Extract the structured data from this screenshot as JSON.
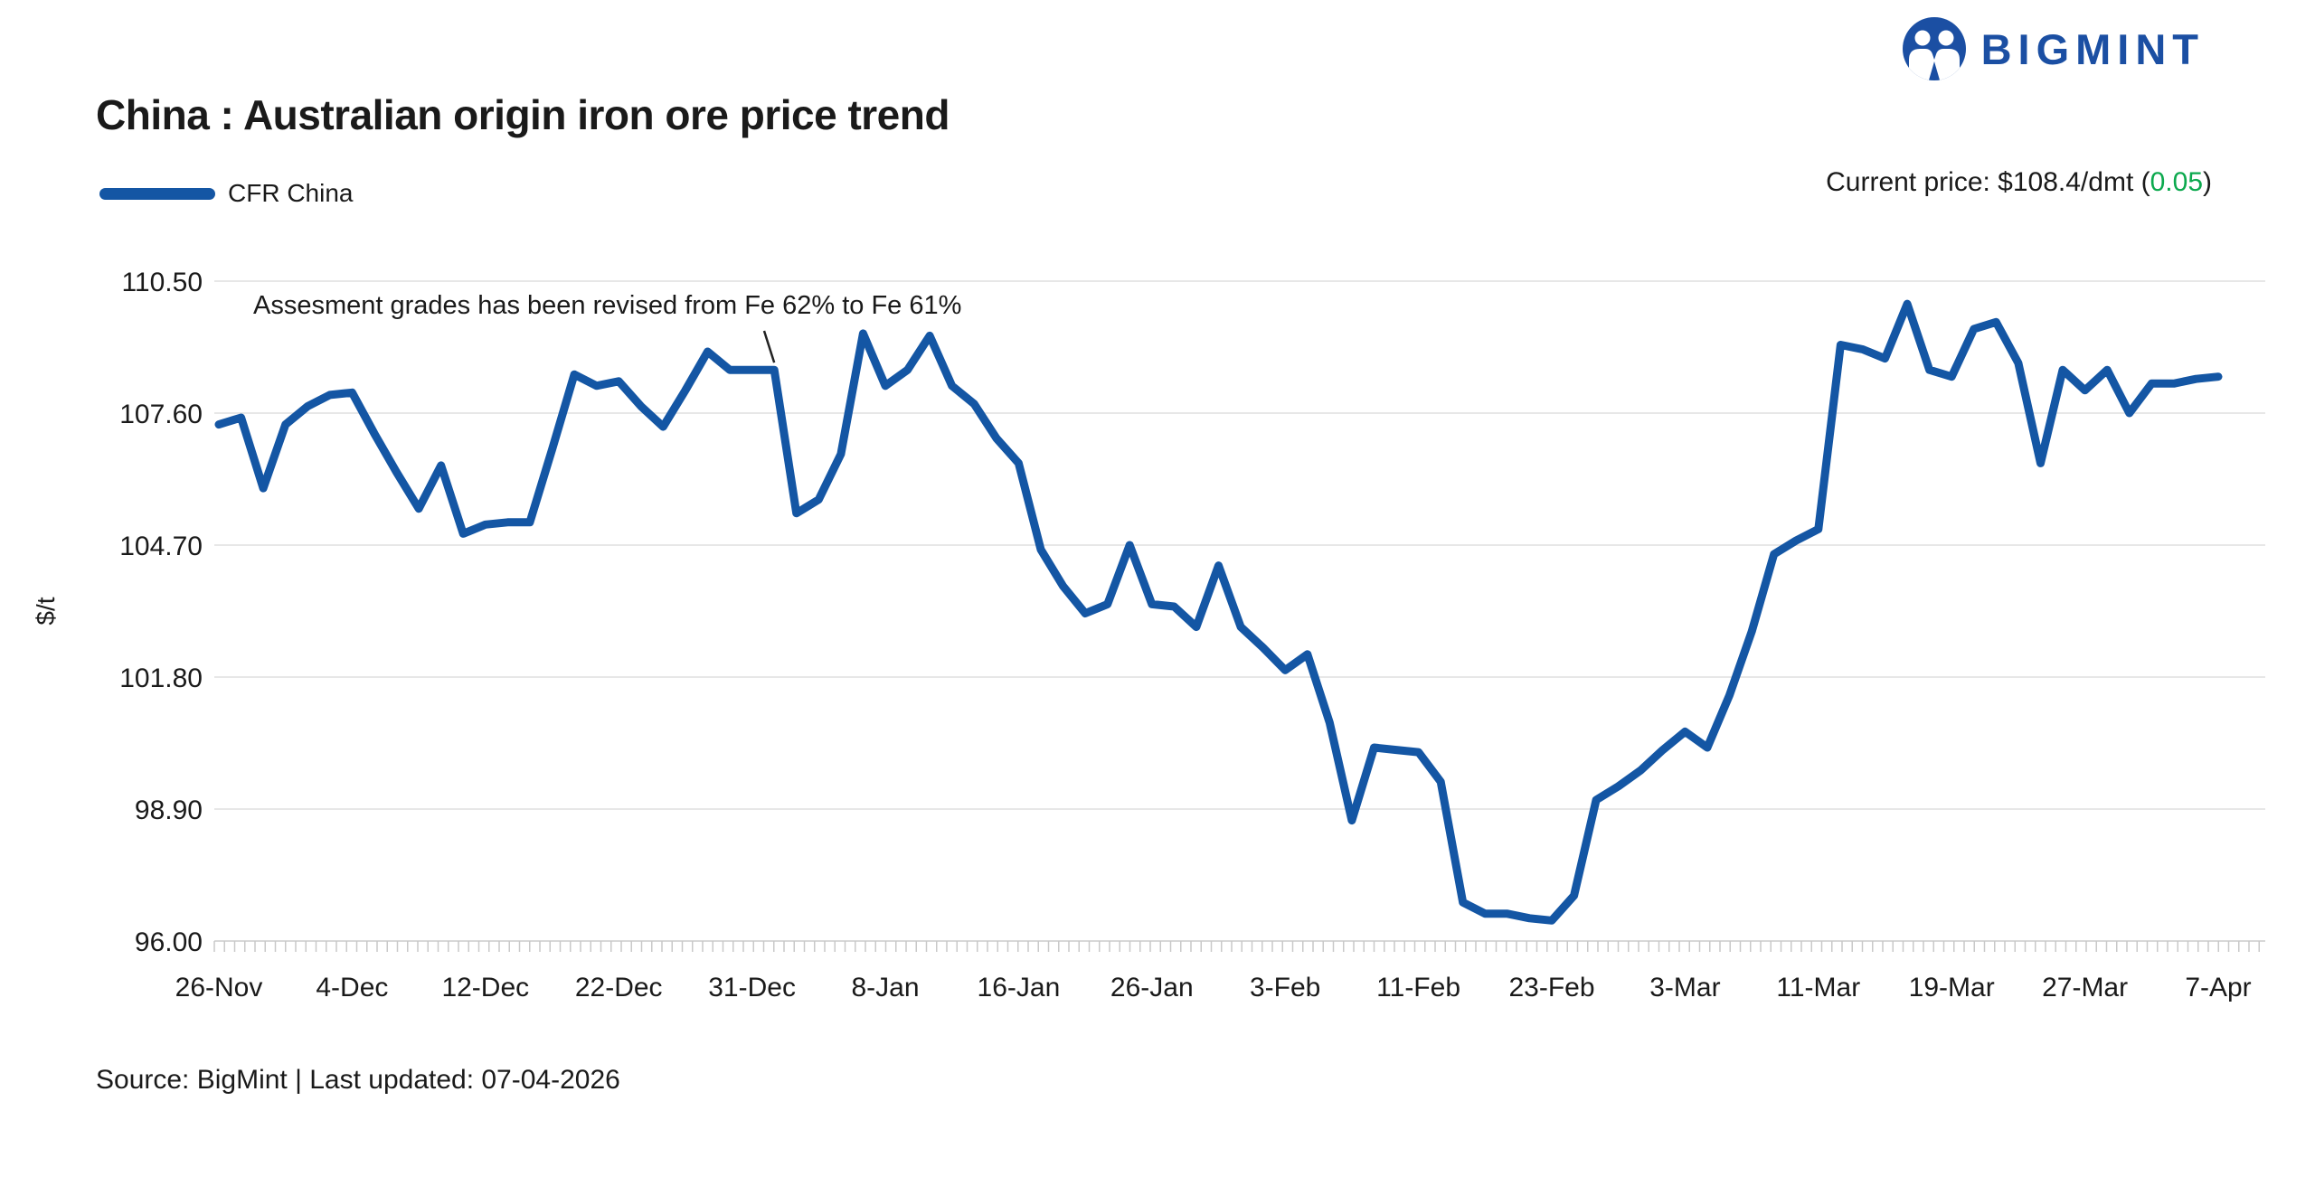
{
  "brand": {
    "name": "BIGMINT"
  },
  "header": {
    "title": "China : Australian origin iron ore price trend",
    "current_price": {
      "prefix": "Current price: $108.4/dmt (",
      "change": "0.05",
      "suffix": ")"
    }
  },
  "legend": {
    "series_label": "CFR China"
  },
  "annotation": {
    "text": "Assesment grades has been revised from Fe 62% to Fe 61%",
    "point_index": 25
  },
  "footer": {
    "source_text": "Source: BigMint | Last updated: 07-04-2026"
  },
  "colors": {
    "line": "#1456A4",
    "brand_blue": "#1B4FA3",
    "positive_green": "#0CA94E",
    "grid": "#E7E7E7",
    "axis": "#D8D8D8",
    "tick": "#C9C9C9",
    "connector": "#222222",
    "text": "#1A1A1A"
  },
  "chart_data": {
    "type": "line",
    "title": "China : Australian origin iron ore price trend",
    "series_name": "CFR China",
    "xlabel": "",
    "ylabel": "$/t",
    "ylim": [
      96.0,
      110.5
    ],
    "grid": "horizontal",
    "legend_position": "top-left",
    "y_ticks": [
      110.5,
      107.6,
      104.7,
      101.8,
      98.9,
      96.0
    ],
    "y_tick_labels": [
      "110.50",
      "107.60",
      "104.70",
      "101.80",
      "98.90",
      "96.00"
    ],
    "x_tick_labels": [
      "26-Nov",
      "4-Dec",
      "12-Dec",
      "22-Dec",
      "31-Dec",
      "8-Jan",
      "16-Jan",
      "26-Jan",
      "3-Feb",
      "11-Feb",
      "23-Feb",
      "3-Mar",
      "11-Mar",
      "19-Mar",
      "27-Mar",
      "7-Apr"
    ],
    "x_tick_every": 6,
    "current_value": 108.4,
    "values": [
      107.35,
      107.5,
      105.95,
      107.35,
      107.75,
      108.0,
      108.05,
      107.15,
      106.3,
      105.5,
      106.45,
      104.95,
      105.15,
      105.2,
      105.2,
      106.8,
      108.45,
      108.2,
      108.3,
      107.75,
      107.3,
      108.1,
      108.95,
      108.55,
      108.55,
      108.55,
      105.4,
      105.7,
      106.7,
      109.35,
      108.2,
      108.55,
      109.3,
      108.2,
      107.8,
      107.05,
      106.5,
      104.6,
      103.8,
      103.2,
      103.4,
      104.7,
      103.4,
      103.35,
      102.9,
      104.25,
      102.9,
      102.45,
      101.95,
      102.3,
      100.8,
      98.65,
      100.25,
      100.2,
      100.15,
      99.5,
      96.85,
      96.6,
      96.6,
      96.5,
      96.45,
      97.0,
      99.1,
      99.4,
      99.75,
      100.2,
      100.6,
      100.25,
      101.4,
      102.8,
      104.5,
      104.8,
      105.05,
      109.1,
      109.0,
      108.8,
      110.0,
      108.55,
      108.4,
      109.45,
      109.6,
      108.7,
      106.5,
      108.55,
      108.1,
      108.55,
      107.6,
      108.25,
      108.25,
      108.35,
      108.4
    ]
  }
}
